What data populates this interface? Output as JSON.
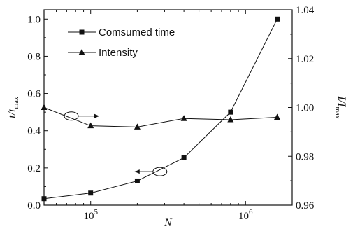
{
  "chart_data": {
    "type": "line",
    "xscale": "log",
    "xlim": [
      50000,
      2000000
    ],
    "x_ticks": [
      {
        "value": 100000,
        "base": "10",
        "exp": "5"
      },
      {
        "value": 1000000,
        "base": "10",
        "exp": "6"
      }
    ],
    "xlabel": "N",
    "y_left": {
      "label_main": "t/t",
      "label_sub": "max",
      "ylim": [
        0.0,
        1.05
      ],
      "ticks": [
        "0.0",
        "0.2",
        "0.4",
        "0.6",
        "0.8",
        "1.0"
      ]
    },
    "y_right": {
      "label_main": "I/I",
      "label_sub": "max",
      "ylim": [
        0.96,
        1.04
      ],
      "ticks": [
        "0.96",
        "0.98",
        "1.00",
        "1.02",
        "1.04"
      ]
    },
    "series": [
      {
        "name": "Comsumed time",
        "axis": "left",
        "marker": "square",
        "x": [
          50000,
          100000,
          200000,
          400000,
          800000,
          1600000
        ],
        "y": [
          0.035,
          0.065,
          0.13,
          0.255,
          0.5,
          1.0
        ]
      },
      {
        "name": "Intensity",
        "axis": "right",
        "marker": "triangle",
        "x": [
          50000,
          100000,
          200000,
          400000,
          800000,
          1600000
        ],
        "y": [
          1.0,
          0.9925,
          0.992,
          0.9955,
          0.995,
          0.996
        ]
      }
    ],
    "annotations": [
      {
        "type": "ellipse-arrow",
        "series": "Intensity",
        "points_to": "right",
        "x": 75000,
        "y_right": 0.9965
      },
      {
        "type": "ellipse-arrow",
        "series": "Comsumed time",
        "points_to": "left",
        "x": 280000,
        "y_left": 0.18
      }
    ],
    "legend_position": "top-left",
    "grid": false,
    "color": "#111111"
  }
}
